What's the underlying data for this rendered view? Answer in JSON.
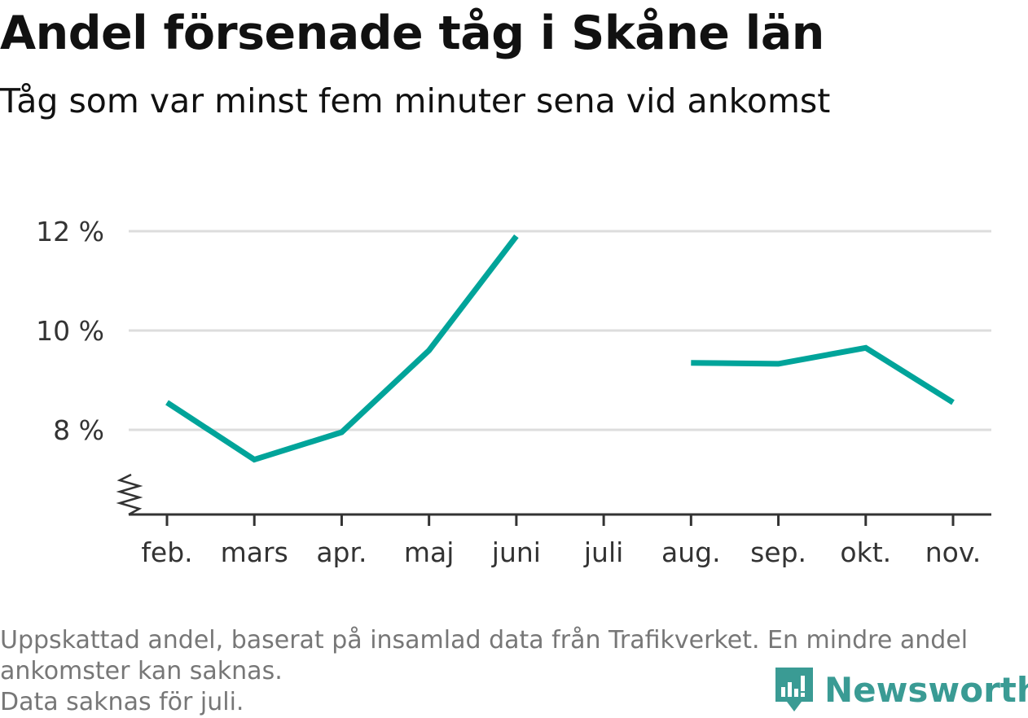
{
  "header": {
    "title": "Andel försenade tåg i Skåne län",
    "subtitle": "Tåg som var minst fem minuter sena vid ankomst"
  },
  "chart_data": {
    "type": "line",
    "categories": [
      "feb.",
      "mars",
      "apr.",
      "maj",
      "juni",
      "juli",
      "aug.",
      "sep.",
      "okt.",
      "nov."
    ],
    "series": [
      {
        "values": [
          8.55,
          7.4,
          7.95,
          9.6,
          11.9,
          null,
          9.35,
          9.33,
          9.65,
          8.55
        ]
      }
    ],
    "yticks": [
      8,
      10,
      12
    ],
    "ytick_labels": [
      "8 %",
      "10 %",
      "12 %"
    ],
    "ylim": [
      6.3,
      12.4
    ],
    "axis_break": true,
    "grid": true,
    "color": "#00a49a"
  },
  "footer": {
    "note_lines": [
      "Uppskattad andel, baserat på insamlad data från Trafikverket. En mindre andel",
      "ankomster kan saknas.",
      "Data saknas för juli."
    ],
    "brand": "Newsworthy",
    "brand_color": "#3a9b94"
  }
}
